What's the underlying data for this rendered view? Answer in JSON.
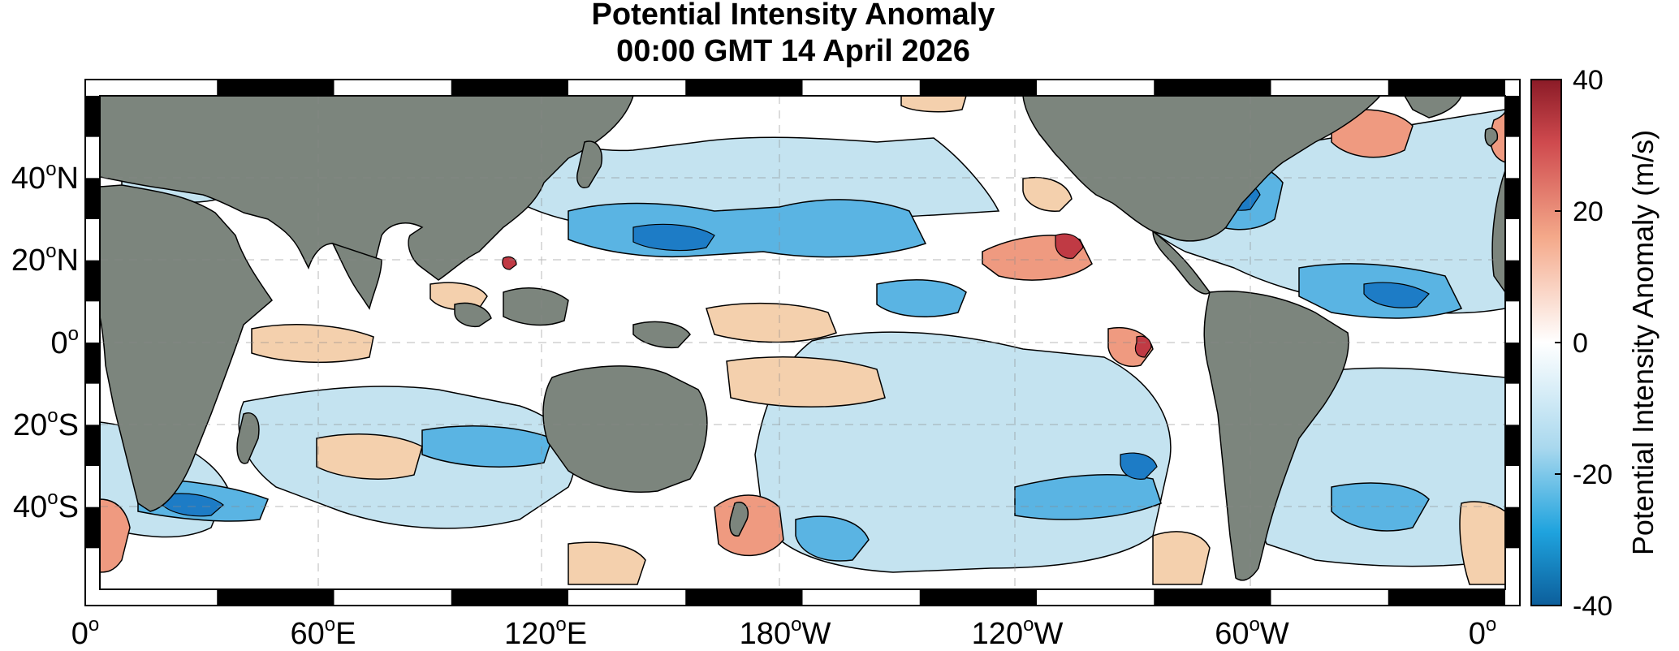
{
  "title": {
    "line1": "Potential Intensity Anomaly",
    "line2": "00:00 GMT 14  April 2026"
  },
  "longitude_ticks": [
    {
      "deg": "0",
      "hem": ""
    },
    {
      "deg": "60",
      "hem": "E"
    },
    {
      "deg": "120",
      "hem": "E"
    },
    {
      "deg": "180",
      "hem": "W"
    },
    {
      "deg": "120",
      "hem": "W"
    },
    {
      "deg": "60",
      "hem": "W"
    },
    {
      "deg": "0",
      "hem": ""
    }
  ],
  "latitude_ticks": [
    {
      "deg": "40",
      "hem": "N"
    },
    {
      "deg": "20",
      "hem": "N"
    },
    {
      "deg": "0",
      "hem": ""
    },
    {
      "deg": "20",
      "hem": "S"
    },
    {
      "deg": "40",
      "hem": "S"
    }
  ],
  "colorbar": {
    "label": "Potential Intensity Anomaly (m/s)",
    "ticks": [
      "40",
      "20",
      "0",
      "-20",
      "-40"
    ],
    "min": -40,
    "max": 40
  },
  "colors": {
    "land": "#7c857d",
    "strong_positive": "#c03a44",
    "positive": "#ef9a80",
    "weak_positive": "#f4d0ad",
    "neutral": "#ffffff",
    "weak_negative": "#c4e3f0",
    "negative": "#5ab4e3",
    "strong_negative": "#1d7cc6",
    "frame_black": "#000000"
  },
  "map_data": {
    "projection": "equirectangular",
    "lon_range_deg": [
      0,
      360
    ],
    "lat_range_deg": [
      -60,
      60
    ],
    "variable": "potential intensity anomaly",
    "units": "m/s"
  }
}
